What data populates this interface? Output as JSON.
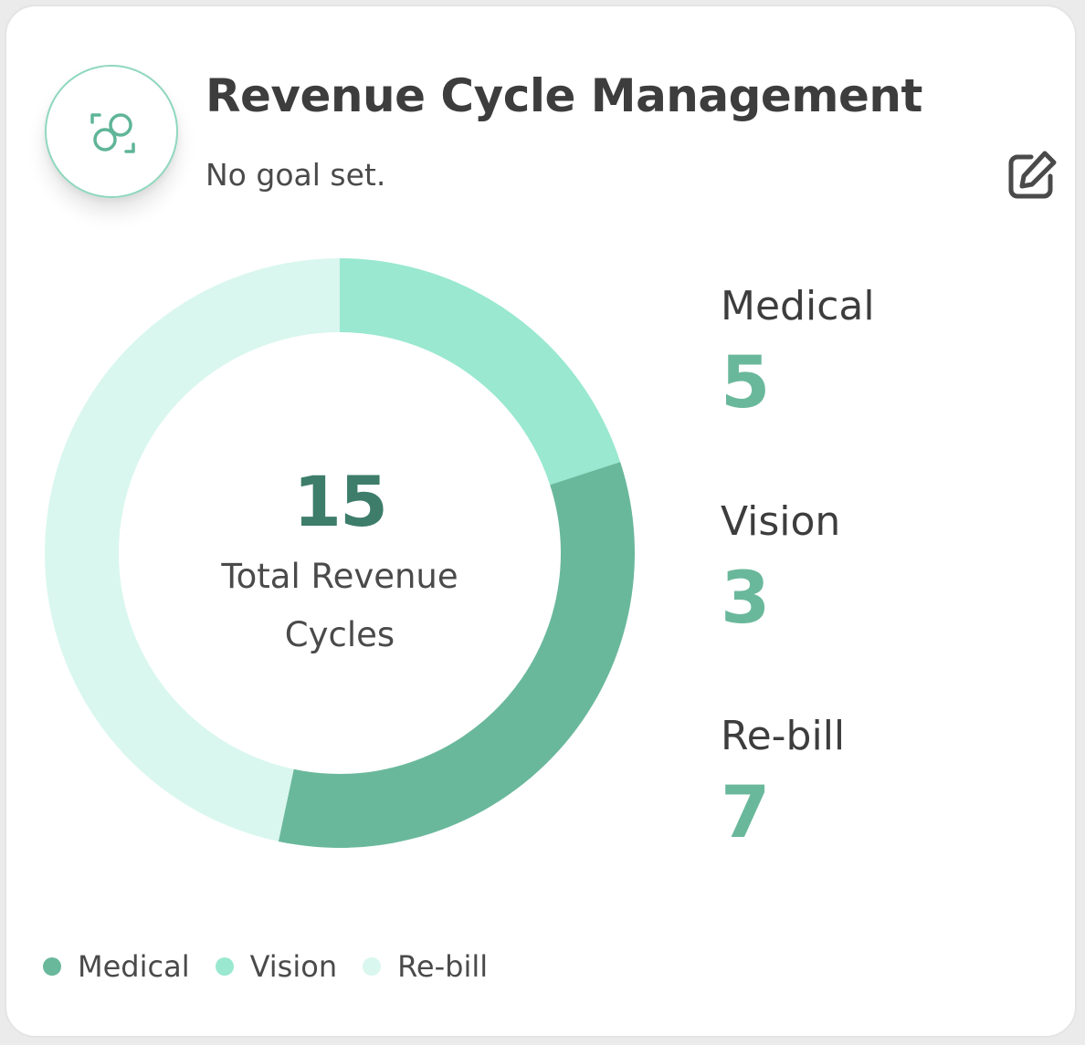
{
  "header": {
    "title": "Revenue Cycle Management",
    "subtitle": "No goal set.",
    "icon": "revenue-cycle-icon",
    "edit_icon": "edit-icon"
  },
  "colors": {
    "medical": "#6ab89c",
    "vision": "#99e8cf",
    "rebill": "#d9f7ee",
    "accent": "#6ab89c",
    "center_value": "#3d7d6a"
  },
  "center": {
    "value": "15",
    "label_line1": "Total Revenue",
    "label_line2": "Cycles"
  },
  "stats": [
    {
      "label": "Medical",
      "value": "5"
    },
    {
      "label": "Vision",
      "value": "3"
    },
    {
      "label": "Re-bill",
      "value": "7"
    }
  ],
  "legend": [
    {
      "label": "Medical",
      "color": "#6ab89c"
    },
    {
      "label": "Vision",
      "color": "#99e8cf"
    },
    {
      "label": "Re-bill",
      "color": "#d9f7ee"
    }
  ],
  "chart_data": {
    "type": "pie",
    "style": "donut",
    "categories": [
      "Medical",
      "Vision",
      "Re-bill"
    ],
    "values": [
      5,
      3,
      7
    ],
    "colors": [
      "#6ab89c",
      "#99e8cf",
      "#d9f7ee"
    ],
    "center_value": "15",
    "center_label": "Total Revenue Cycles",
    "legend_position": "bottom-left",
    "slice_order": [
      "Vision",
      "Medical",
      "Re-bill"
    ]
  }
}
